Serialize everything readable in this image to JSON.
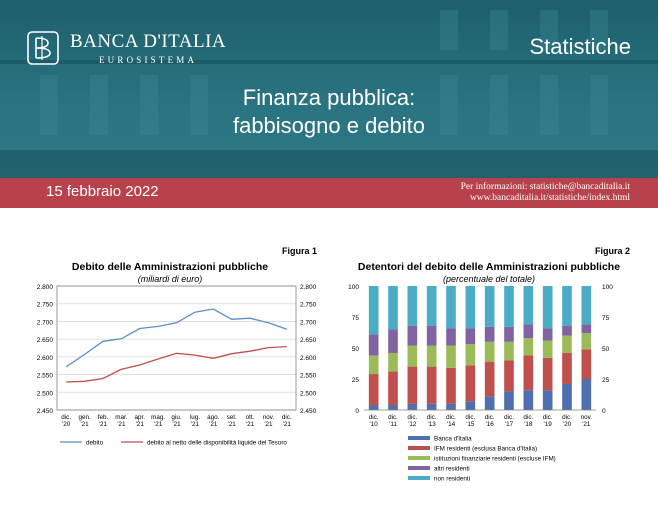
{
  "header": {
    "logo_name": "BANCA D'ITALIA",
    "logo_sub": "EUROSISTEMA",
    "section": "Statistiche",
    "title_line1": "Finanza pubblica:",
    "title_line2": "fabbisogno e debito"
  },
  "band": {
    "date": "15 febbraio 2022",
    "info_line1": "Per informazioni: statistiche@bancaditalia.it",
    "info_line2": "www.bancaditalia.it/statistiche/index.html"
  },
  "colors": {
    "teal": "#2a7280",
    "band_red": "#b7424c",
    "line_blue": "#5b8fc9",
    "line_red": "#c0504d"
  },
  "chart_data": [
    {
      "type": "line",
      "figure_label": "Figura 1",
      "title": "Debito delle Amministrazioni pubbliche",
      "subtitle": "(miliardi di euro)",
      "categories": [
        [
          "dic.",
          "'20"
        ],
        [
          "gen.",
          "'21"
        ],
        [
          "feb.",
          "'21"
        ],
        [
          "mar.",
          "'21"
        ],
        [
          "apr.",
          "'21"
        ],
        [
          "mag.",
          "'21"
        ],
        [
          "giu.",
          "'21"
        ],
        [
          "lug.",
          "'21"
        ],
        [
          "ago.",
          "'21"
        ],
        [
          "set.",
          "'21"
        ],
        [
          "ott.",
          "'21"
        ],
        [
          "nov.",
          "'21"
        ],
        [
          "dic.",
          "'21"
        ]
      ],
      "ylim": [
        2450,
        2800
      ],
      "yticks": [
        "2.450",
        "2.500",
        "2.550",
        "2.600",
        "2.650",
        "2.700",
        "2.750",
        "2.800"
      ],
      "ytick_values": [
        2450,
        2500,
        2550,
        2600,
        2650,
        2700,
        2750,
        2800
      ],
      "series": [
        {
          "name": "debito",
          "color": "#5b8fc9",
          "values": [
            2572,
            2607,
            2644,
            2651,
            2680,
            2686,
            2696,
            2726,
            2735,
            2706,
            2709,
            2696,
            2678
          ]
        },
        {
          "name": "debito al netto delle disponibilità liquide del Tesoro",
          "color": "#c0504d",
          "values": [
            2529,
            2531,
            2539,
            2565,
            2577,
            2594,
            2610,
            2605,
            2596,
            2609,
            2616,
            2626,
            2629
          ]
        }
      ],
      "grid": true
    },
    {
      "type": "bar",
      "stacked": true,
      "figure_label": "Figura 2",
      "title": "Detentori del debito delle Amministrazioni pubbliche",
      "subtitle": "(percentuale del totale)",
      "categories": [
        [
          "dic.",
          "'10"
        ],
        [
          "dic.",
          "'11"
        ],
        [
          "dic.",
          "'12"
        ],
        [
          "dic.",
          "'13"
        ],
        [
          "dic.",
          "'14"
        ],
        [
          "dic.",
          "'15"
        ],
        [
          "dic.",
          "'16"
        ],
        [
          "dic.",
          "'17"
        ],
        [
          "dic.",
          "'18"
        ],
        [
          "dic.",
          "'19"
        ],
        [
          "dic.",
          "'20"
        ],
        [
          "nov.",
          "'21"
        ]
      ],
      "ylim": [
        0,
        100
      ],
      "yticks": [
        "0",
        "25",
        "50",
        "75",
        "100"
      ],
      "ytick_values": [
        0,
        25,
        50,
        75,
        100
      ],
      "series": [
        {
          "name": "Banca d'Italia",
          "color": "#4f6fae",
          "values": [
            4,
            4,
            5,
            5,
            5,
            7,
            11,
            15,
            16,
            16,
            21,
            25
          ]
        },
        {
          "name": "IFM residenti (esclusa Banca d'Italia)",
          "color": "#c0504d",
          "values": [
            25,
            27,
            30,
            30,
            29,
            29,
            28,
            25,
            28,
            26,
            25,
            24
          ]
        },
        {
          "name": "istituzioni finanziarie residenti (escluse IFM)",
          "color": "#9bbb59",
          "values": [
            15,
            15,
            17,
            17,
            18,
            17,
            16,
            15,
            14,
            14,
            14,
            13
          ]
        },
        {
          "name": "altri residenti",
          "color": "#8064a2",
          "values": [
            17,
            19,
            16,
            16,
            14,
            13,
            12,
            12,
            11,
            10,
            8,
            7
          ]
        },
        {
          "name": "non residenti",
          "color": "#4bacc6",
          "values": [
            39,
            35,
            32,
            32,
            34,
            34,
            33,
            33,
            31,
            34,
            32,
            31
          ]
        }
      ]
    }
  ]
}
